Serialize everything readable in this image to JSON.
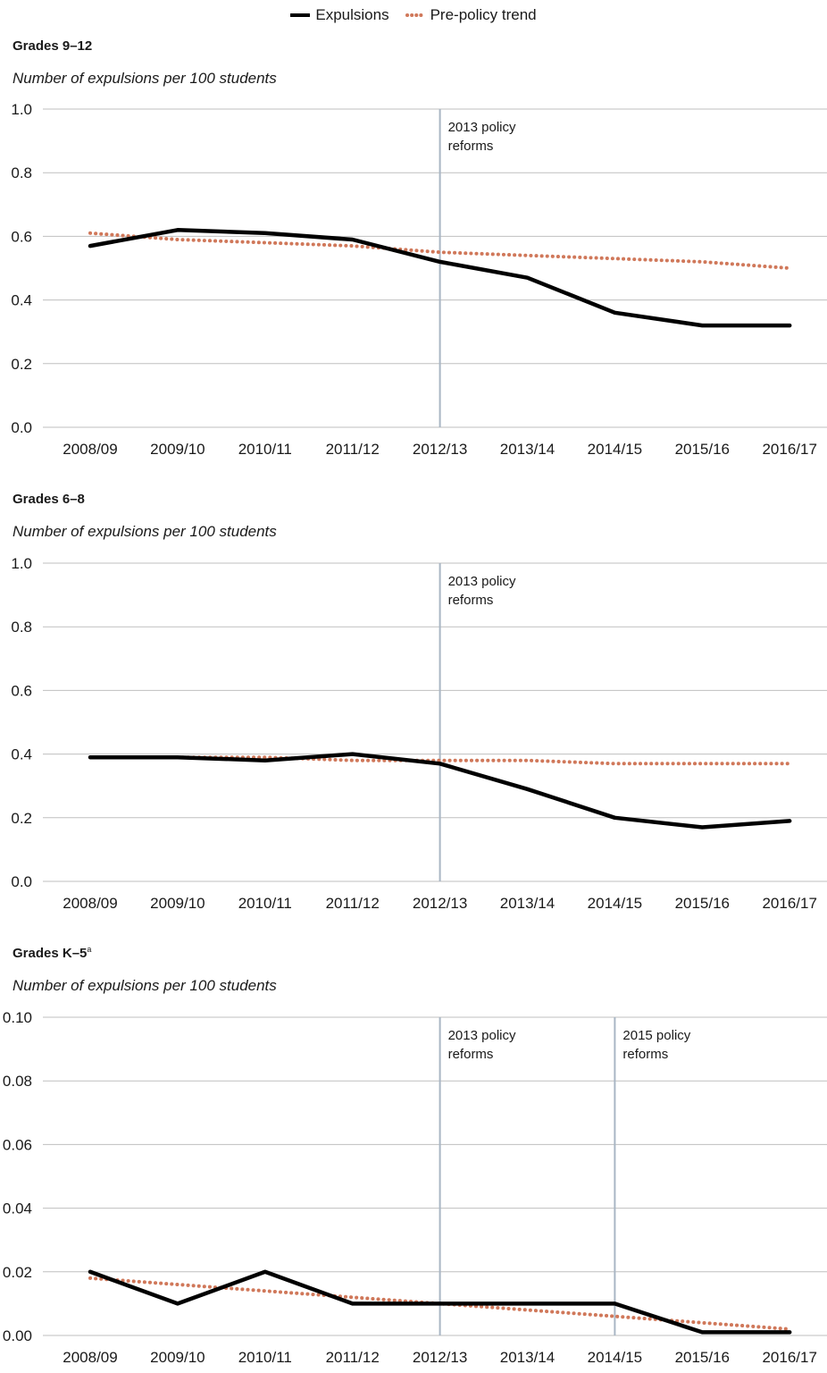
{
  "legend": {
    "expulsions": "Expulsions",
    "trend": "Pre-policy trend"
  },
  "colors": {
    "expulsions": "#000000",
    "trend": "#d0785a",
    "gridline": "#bfbfbf",
    "policy_line": "#a9b6c4"
  },
  "chart_data": [
    {
      "type": "line",
      "title": "Grades 9–12",
      "title_sup": "",
      "subtitle": "Number of expulsions per 100 students",
      "categories": [
        "2008/09",
        "2009/10",
        "2010/11",
        "2011/12",
        "2012/13",
        "2013/14",
        "2014/15",
        "2015/16",
        "2016/17"
      ],
      "ylim": [
        0,
        1.0
      ],
      "yticks": [
        "0.0",
        "0.2",
        "0.4",
        "0.6",
        "0.8",
        "1.0"
      ],
      "series": [
        {
          "name": "Expulsions",
          "values": [
            0.57,
            0.62,
            0.61,
            0.59,
            0.52,
            0.47,
            0.36,
            0.32,
            0.32
          ]
        },
        {
          "name": "Pre-policy trend",
          "values": [
            0.61,
            0.59,
            0.58,
            0.57,
            0.55,
            0.54,
            0.53,
            0.52,
            0.5
          ]
        }
      ],
      "annotations": [
        {
          "category": "2012/13",
          "line1": "2013 policy",
          "line2": "reforms"
        }
      ]
    },
    {
      "type": "line",
      "title": "Grades 6–8",
      "title_sup": "",
      "subtitle": "Number of expulsions per 100 students",
      "categories": [
        "2008/09",
        "2009/10",
        "2010/11",
        "2011/12",
        "2012/13",
        "2013/14",
        "2014/15",
        "2015/16",
        "2016/17"
      ],
      "ylim": [
        0,
        1.0
      ],
      "yticks": [
        "0.0",
        "0.2",
        "0.4",
        "0.6",
        "0.8",
        "1.0"
      ],
      "series": [
        {
          "name": "Expulsions",
          "values": [
            0.39,
            0.39,
            0.38,
            0.4,
            0.37,
            0.29,
            0.2,
            0.17,
            0.19
          ]
        },
        {
          "name": "Pre-policy trend",
          "values": [
            0.39,
            0.39,
            0.39,
            0.38,
            0.38,
            0.38,
            0.37,
            0.37,
            0.37
          ]
        }
      ],
      "annotations": [
        {
          "category": "2012/13",
          "line1": "2013 policy",
          "line2": "reforms"
        }
      ]
    },
    {
      "type": "line",
      "title": "Grades K–5",
      "title_sup": "a",
      "subtitle": "Number of expulsions per 100 students",
      "categories": [
        "2008/09",
        "2009/10",
        "2010/11",
        "2011/12",
        "2012/13",
        "2013/14",
        "2014/15",
        "2015/16",
        "2016/17"
      ],
      "ylim": [
        0,
        0.1
      ],
      "yticks": [
        "0.00",
        "0.02",
        "0.04",
        "0.06",
        "0.08",
        "0.10"
      ],
      "series": [
        {
          "name": "Expulsions",
          "values": [
            0.02,
            0.01,
            0.02,
            0.01,
            0.01,
            0.01,
            0.01,
            0.001,
            0.001
          ]
        },
        {
          "name": "Pre-policy trend",
          "values": [
            0.018,
            0.016,
            0.014,
            0.012,
            0.01,
            0.008,
            0.006,
            0.004,
            0.002
          ]
        }
      ],
      "annotations": [
        {
          "category": "2012/13",
          "line1": "2013 policy",
          "line2": "reforms"
        },
        {
          "category": "2014/15",
          "line1": "2015 policy",
          "line2": "reforms"
        }
      ]
    }
  ]
}
